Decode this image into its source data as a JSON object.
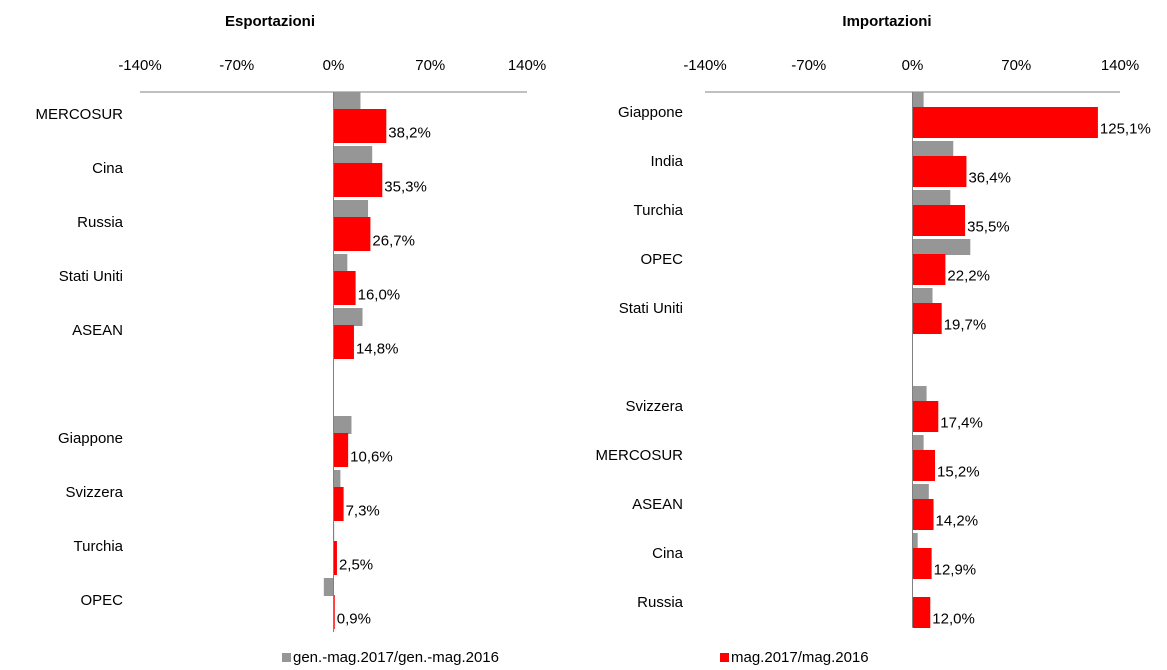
{
  "charts": [
    {
      "chart_data": {
        "type": "hbar",
        "title": "Esportazioni",
        "categories": [
          "MERCOSUR",
          "Cina",
          "Russia",
          "Stati Uniti",
          "ASEAN",
          null,
          "Giappone",
          "Svizzera",
          "Turchia",
          "OPEC"
        ],
        "series": [
          {
            "values": [
              19.5,
              28,
              25,
              10,
              21,
              null,
              13,
              5,
              0.5,
              -7
            ]
          },
          {
            "values": [
              38.2,
              35.3,
              26.7,
              16.0,
              14.8,
              null,
              10.6,
              7.3,
              2.5,
              0.9
            ],
            "value_labels": [
              "38,2%",
              "35,3%",
              "26,7%",
              "16,0%",
              "14,8%",
              null,
              "10,6%",
              "7,3%",
              "2,5%",
              "0,9%"
            ]
          }
        ],
        "xlim": [
          -140,
          140
        ],
        "xticks": [
          {
            "value": -140,
            "label": "-140%"
          },
          {
            "value": -70,
            "label": "-70%"
          },
          {
            "value": 0,
            "label": "0%"
          },
          {
            "value": 70,
            "label": "70%"
          },
          {
            "value": 140,
            "label": "140%"
          }
        ]
      }
    },
    {
      "chart_data": {
        "type": "hbar",
        "title": "Importazioni",
        "categories": [
          "Giappone",
          "India",
          "Turchia",
          "OPEC",
          "Stati Uniti",
          null,
          "Svizzera",
          "MERCOSUR",
          "ASEAN",
          "Cina",
          "Russia"
        ],
        "series": [
          {
            "values": [
              7.5,
              27.5,
              25.5,
              39,
              13.5,
              null,
              9.5,
              7.5,
              11,
              3.5,
              0
            ]
          },
          {
            "values": [
              125.1,
              36.4,
              35.5,
              22.2,
              19.7,
              null,
              17.4,
              15.2,
              14.2,
              12.9,
              12.0
            ],
            "value_labels": [
              "125,1%",
              "36,4%",
              "35,5%",
              "22,2%",
              "19,7%",
              null,
              "17,4%",
              "15,2%",
              "14,2%",
              "12,9%",
              "12,0%"
            ]
          }
        ],
        "xlim": [
          -140,
          140
        ],
        "xticks": [
          {
            "value": -140,
            "label": "-140%"
          },
          {
            "value": -70,
            "label": "-70%"
          },
          {
            "value": 0,
            "label": "0%"
          },
          {
            "value": 70,
            "label": "70%"
          },
          {
            "value": 140,
            "label": "140%"
          }
        ]
      }
    }
  ],
  "legend": [
    {
      "name": "gen.-mag.2017/gen.-mag.2016",
      "color": "#969696"
    },
    {
      "name": "mag.2017/mag.2016",
      "color": "#ff0000"
    }
  ]
}
